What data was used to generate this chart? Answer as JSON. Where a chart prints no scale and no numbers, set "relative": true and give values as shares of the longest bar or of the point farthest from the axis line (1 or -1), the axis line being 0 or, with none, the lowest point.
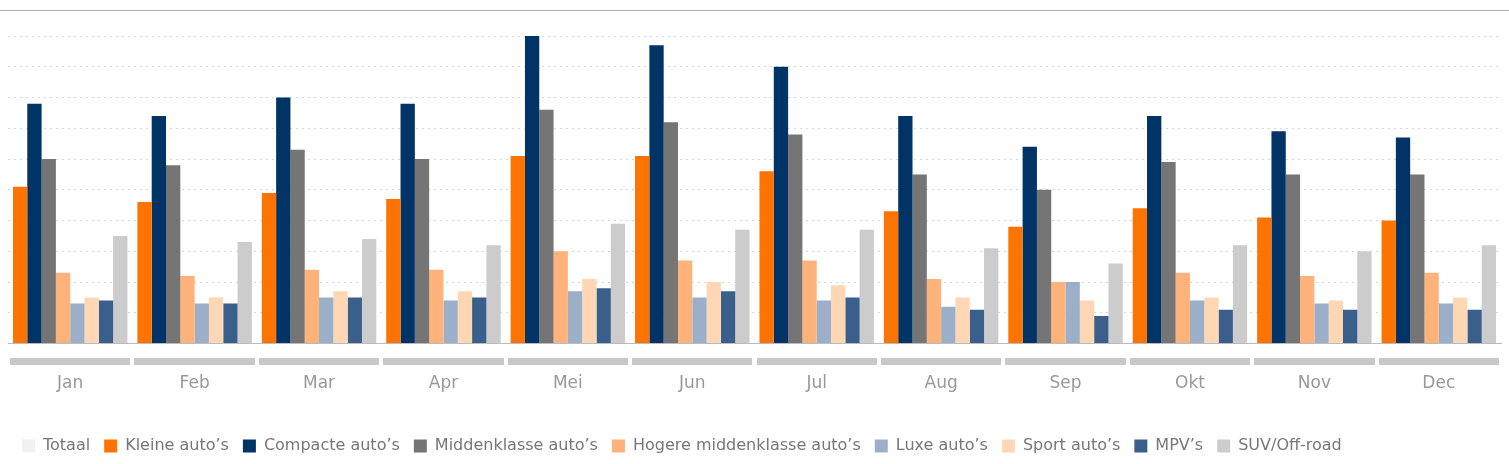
{
  "chart_data": {
    "type": "bar",
    "relative": true,
    "grid": "y",
    "legend": "bottom",
    "categories": [
      "Jan",
      "Feb",
      "Mar",
      "Apr",
      "Mei",
      "Jun",
      "Jul",
      "Aug",
      "Sep",
      "Okt",
      "Nov",
      "Dec"
    ],
    "series": [
      {
        "name": "Totaal",
        "color": "#f0f0f0",
        "values": [
          null,
          null,
          null,
          null,
          null,
          null,
          null,
          null,
          null,
          null,
          null,
          null
        ]
      },
      {
        "name": "Kleine auto’s",
        "color": "#ff7300",
        "values": [
          0.51,
          0.46,
          0.49,
          0.47,
          0.61,
          0.61,
          0.56,
          0.43,
          0.38,
          0.44,
          0.41,
          0.4
        ]
      },
      {
        "name": "Compacte auto’s",
        "color": "#003366",
        "values": [
          0.78,
          0.74,
          0.8,
          0.78,
          1,
          0.97,
          0.9,
          0.74,
          0.64,
          0.74,
          0.69,
          0.67
        ]
      },
      {
        "name": "Middenklasse auto’s",
        "color": "#757575",
        "values": [
          0.6,
          0.58,
          0.63,
          0.6,
          0.76,
          0.72,
          0.68,
          0.55,
          0.5,
          0.59,
          0.55,
          0.55
        ]
      },
      {
        "name": "Hogere middenklasse auto’s",
        "color": "#ffb27a",
        "values": [
          0.23,
          0.22,
          0.24,
          0.24,
          0.3,
          0.27,
          0.27,
          0.21,
          0.2,
          0.23,
          0.22,
          0.23
        ]
      },
      {
        "name": "Luxe auto’s",
        "color": "#9bb0c8",
        "values": [
          0.13,
          0.13,
          0.15,
          0.14,
          0.17,
          0.15,
          0.14,
          0.12,
          0.2,
          0.14,
          0.13,
          0.13
        ]
      },
      {
        "name": "Sport auto’s",
        "color": "#ffd7b5",
        "values": [
          0.15,
          0.15,
          0.17,
          0.17,
          0.21,
          0.2,
          0.19,
          0.15,
          0.14,
          0.15,
          0.14,
          0.15
        ]
      },
      {
        "name": "MPV’s",
        "color": "#3a5f8a",
        "values": [
          0.14,
          0.13,
          0.15,
          0.15,
          0.18,
          0.17,
          0.15,
          0.11,
          0.09,
          0.11,
          0.11,
          0.11
        ]
      },
      {
        "name": "SUV/Off-road",
        "color": "#cccccc",
        "values": [
          0.35,
          0.33,
          0.34,
          0.32,
          0.39,
          0.37,
          0.37,
          0.31,
          0.26,
          0.32,
          0.3,
          0.32
        ]
      }
    ]
  }
}
